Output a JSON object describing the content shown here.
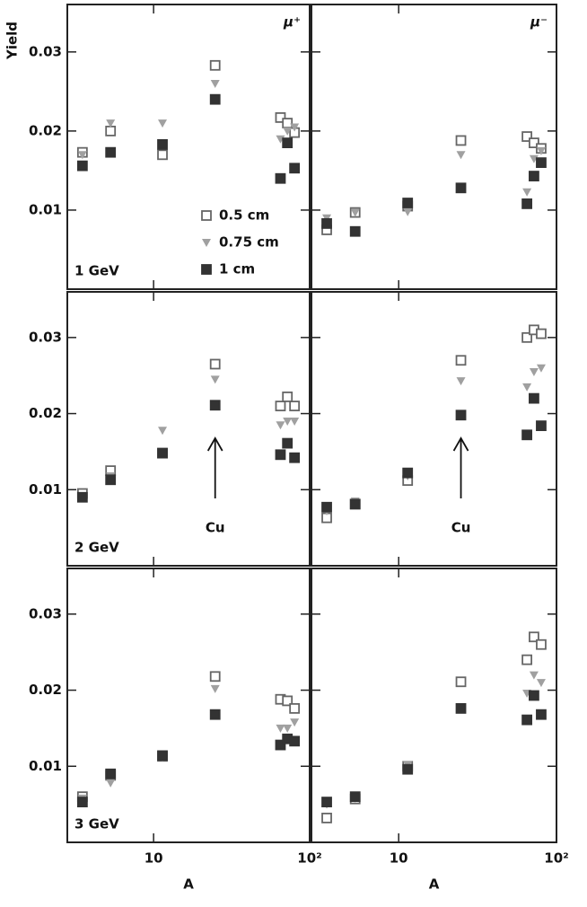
{
  "chart_data": [
    {
      "type": "scatter",
      "y_label": "Yield",
      "particle_label": "μ⁺",
      "panel_label": "1 GeV",
      "x": [
        3.5,
        5.3,
        11.4,
        24.8,
        65,
        72,
        80
      ],
      "xlim": [
        2.8,
        100
      ],
      "ylim": [
        0,
        0.036
      ],
      "log_x": true,
      "xticks": [
        10,
        {
          "value": 100,
          "label": "10²"
        }
      ],
      "yticks": [
        0.01,
        0.02,
        0.03
      ],
      "series": [
        {
          "name": "0.5 cm",
          "color": "#666666",
          "marker": "open-square",
          "values": [
            0.0173,
            0.02,
            0.017,
            0.0283,
            0.0217,
            0.021,
            0.0198
          ]
        },
        {
          "name": "0.75 cm",
          "color": "#a0a0a0",
          "marker": "triangle",
          "values": [
            0.017,
            0.021,
            0.021,
            0.026,
            0.019,
            0.02,
            0.0205
          ]
        },
        {
          "name": "1 cm",
          "color": "#333333",
          "marker": "filled-square",
          "values": [
            0.0156,
            0.0173,
            0.0183,
            0.024,
            0.014,
            0.0185,
            0.0153
          ]
        }
      ]
    },
    {
      "type": "scatter",
      "particle_label": "μ⁻",
      "x": [
        3.5,
        5.3,
        11.4,
        24.8,
        65,
        72,
        80
      ],
      "xlim": [
        2.8,
        100
      ],
      "ylim": [
        0,
        0.036
      ],
      "log_x": true,
      "xticks": [
        10,
        100
      ],
      "yticks": [
        0.01,
        0.02,
        0.03
      ],
      "series": [
        {
          "color": "#666666",
          "marker": "open-square",
          "values": [
            0.0075,
            0.0097,
            0.0105,
            0.0188,
            0.0193,
            0.0185,
            0.0178
          ]
        },
        {
          "color": "#a0a0a0",
          "marker": "triangle",
          "values": [
            0.009,
            0.0097,
            0.0098,
            0.017,
            0.0123,
            0.0165,
            0.0175
          ]
        },
        {
          "color": "#333333",
          "marker": "filled-square",
          "values": [
            0.0083,
            0.0073,
            0.0109,
            0.0128,
            0.0108,
            0.0143,
            0.016
          ]
        }
      ]
    },
    {
      "type": "scatter",
      "panel_label": "2 GeV",
      "annotation": "Cu",
      "x": [
        3.5,
        5.3,
        11.4,
        24.8,
        65,
        72,
        80
      ],
      "xlim": [
        2.8,
        100
      ],
      "ylim": [
        0,
        0.036
      ],
      "log_x": true,
      "xticks": [
        10,
        100
      ],
      "yticks": [
        0.01,
        0.02,
        0.03
      ],
      "series": [
        {
          "color": "#666666",
          "marker": "open-square",
          "values": [
            0.0095,
            0.0125,
            0.0148,
            0.0265,
            0.021,
            0.0222,
            0.021
          ]
        },
        {
          "color": "#a0a0a0",
          "marker": "triangle",
          "values": [
            0.0092,
            0.0118,
            0.0178,
            0.0245,
            0.0185,
            0.019,
            0.019
          ]
        },
        {
          "color": "#333333",
          "marker": "filled-square",
          "values": [
            0.009,
            0.0113,
            0.0148,
            0.0211,
            0.0146,
            0.0161,
            0.0142
          ]
        }
      ]
    },
    {
      "type": "scatter",
      "annotation": "Cu",
      "x": [
        3.5,
        5.3,
        11.4,
        24.8,
        65,
        72,
        80
      ],
      "xlim": [
        2.8,
        100
      ],
      "ylim": [
        0,
        0.036
      ],
      "log_x": true,
      "xticks": [
        10,
        100
      ],
      "yticks": [
        0.01,
        0.02,
        0.03
      ],
      "series": [
        {
          "color": "#666666",
          "marker": "open-square",
          "values": [
            0.0063,
            0.0081,
            0.0112,
            0.027,
            0.03,
            0.031,
            0.0305
          ]
        },
        {
          "color": "#a0a0a0",
          "marker": "triangle",
          "values": [
            0.0072,
            0.0085,
            0.0118,
            0.0243,
            0.0235,
            0.0255,
            0.026
          ]
        },
        {
          "color": "#333333",
          "marker": "filled-square",
          "values": [
            0.0077,
            0.0081,
            0.0122,
            0.0198,
            0.0172,
            0.022,
            0.0184
          ]
        }
      ]
    },
    {
      "type": "scatter",
      "panel_label": "3 GeV",
      "x_label": "A",
      "x": [
        3.5,
        5.3,
        11.4,
        24.8,
        65,
        72,
        80
      ],
      "xlim": [
        2.8,
        100
      ],
      "ylim": [
        0,
        0.036
      ],
      "log_x": true,
      "xticks": [
        10,
        {
          "value": 100,
          "label": "10²"
        }
      ],
      "yticks": [
        0.01,
        0.02,
        0.03
      ],
      "series": [
        {
          "color": "#666666",
          "marker": "open-square",
          "values": [
            0.006,
            0.0088,
            0.0113,
            0.0218,
            0.0188,
            0.0186,
            0.0176
          ]
        },
        {
          "color": "#a0a0a0",
          "marker": "triangle",
          "values": [
            0.0058,
            0.0078,
            0.0112,
            0.0202,
            0.015,
            0.015,
            0.0158
          ]
        },
        {
          "color": "#333333",
          "marker": "filled-square",
          "values": [
            0.0053,
            0.009,
            0.0114,
            0.0168,
            0.0128,
            0.0136,
            0.0133
          ]
        }
      ]
    },
    {
      "type": "scatter",
      "x_label": "A",
      "x": [
        3.5,
        5.3,
        11.4,
        24.8,
        65,
        72,
        80
      ],
      "xlim": [
        2.8,
        100
      ],
      "ylim": [
        0,
        0.036
      ],
      "log_x": true,
      "xticks": [
        10,
        {
          "value": 100,
          "label": "10²"
        }
      ],
      "yticks": [
        0.01,
        0.02,
        0.03
      ],
      "series": [
        {
          "color": "#666666",
          "marker": "open-square",
          "values": [
            0.0032,
            0.0057,
            0.01,
            0.0211,
            0.024,
            0.027,
            0.026
          ]
        },
        {
          "color": "#a0a0a0",
          "marker": "triangle",
          "values": [
            0.005,
            0.0058,
            0.0102,
            0.0178,
            0.0196,
            0.022,
            0.021
          ]
        },
        {
          "color": "#333333",
          "marker": "filled-square",
          "values": [
            0.0053,
            0.006,
            0.0096,
            0.0176,
            0.0161,
            0.0193,
            0.0168
          ]
        }
      ]
    }
  ]
}
